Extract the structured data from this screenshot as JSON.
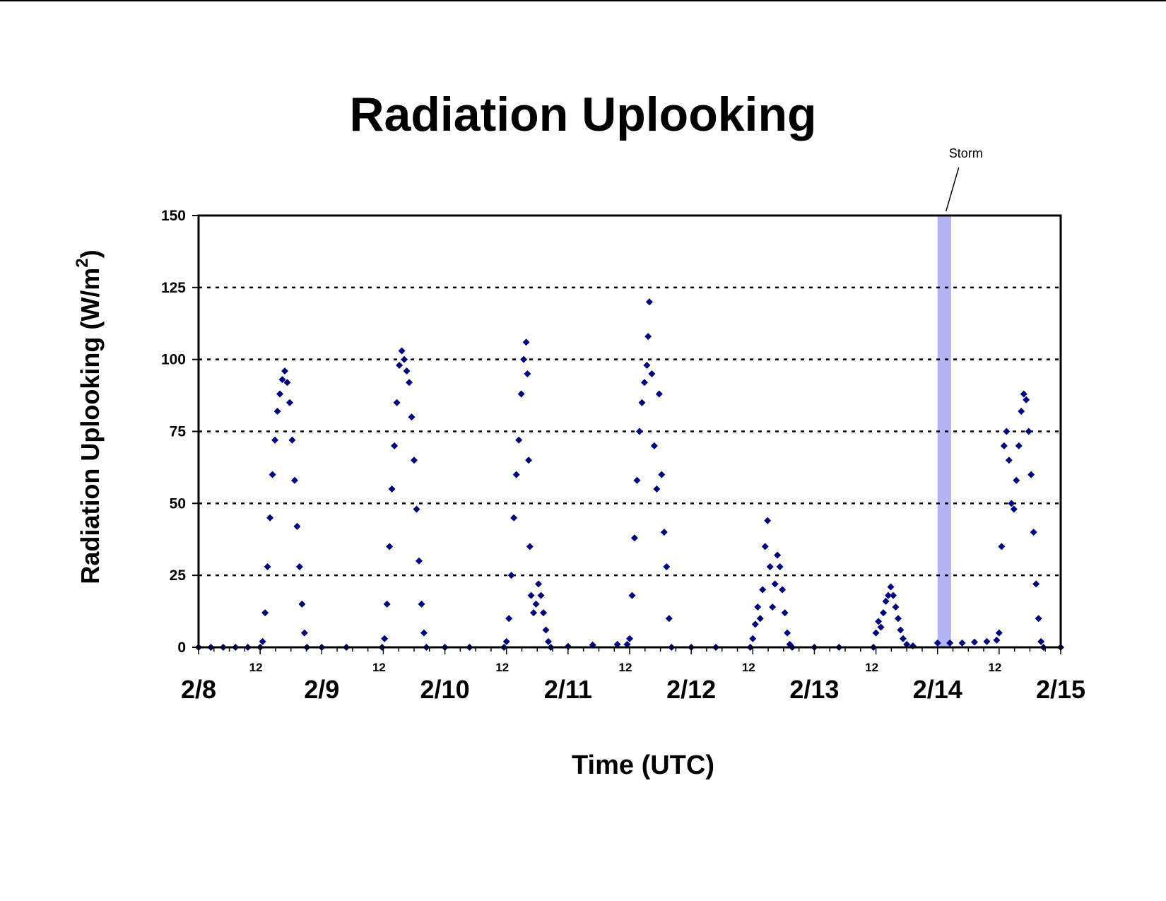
{
  "chart_data": {
    "type": "scatter",
    "title": "Radiation Uplooking",
    "xlabel": "Time (UTC)",
    "ylabel": "Radiation Uplooking (W/m",
    "ylabel_superscript": "2",
    "ylabel_close": ")",
    "x_units": "days since 2/8 00 UTC",
    "xlim": [
      0,
      7
    ],
    "ylim": [
      0,
      150
    ],
    "y_ticks": [
      0,
      25,
      50,
      75,
      100,
      125,
      150
    ],
    "y_tick_labels": [
      "0",
      "25",
      "50",
      "75",
      "100",
      "125",
      "150"
    ],
    "grid": "horizontal dotted at 25, 50, 75, 100, 125",
    "x_date_ticks": [
      {
        "x": 0,
        "label": "2/8"
      },
      {
        "x": 1,
        "label": "2/9"
      },
      {
        "x": 2,
        "label": "2/10"
      },
      {
        "x": 3,
        "label": "2/11"
      },
      {
        "x": 4,
        "label": "2/12"
      },
      {
        "x": 5,
        "label": "2/13"
      },
      {
        "x": 6,
        "label": "2/14"
      },
      {
        "x": 7,
        "label": "2/15"
      }
    ],
    "x_noon_ticks": [
      {
        "x": 0.5,
        "label": "12"
      },
      {
        "x": 1.5,
        "label": "12"
      },
      {
        "x": 2.5,
        "label": "12"
      },
      {
        "x": 3.5,
        "label": "12"
      },
      {
        "x": 4.5,
        "label": "12"
      },
      {
        "x": 5.5,
        "label": "12"
      },
      {
        "x": 6.5,
        "label": "12"
      }
    ],
    "annotation": {
      "label": "Storm",
      "x_start": 6.0,
      "x_end": 6.11,
      "color": "#B3B3F5"
    },
    "marker_color": "#000080",
    "series": [
      {
        "values": [
          [
            0.0,
            0
          ],
          [
            0.1,
            0
          ],
          [
            0.2,
            0
          ],
          [
            0.3,
            0
          ],
          [
            0.4,
            0
          ],
          [
            0.5,
            0
          ],
          [
            0.52,
            2
          ],
          [
            0.54,
            12
          ],
          [
            0.56,
            28
          ],
          [
            0.58,
            45
          ],
          [
            0.6,
            60
          ],
          [
            0.62,
            72
          ],
          [
            0.64,
            82
          ],
          [
            0.66,
            88
          ],
          [
            0.68,
            93
          ],
          [
            0.7,
            96
          ],
          [
            0.72,
            92
          ],
          [
            0.74,
            85
          ],
          [
            0.76,
            72
          ],
          [
            0.78,
            58
          ],
          [
            0.8,
            42
          ],
          [
            0.82,
            28
          ],
          [
            0.84,
            15
          ],
          [
            0.86,
            5
          ],
          [
            0.88,
            0
          ],
          [
            1.0,
            0
          ],
          [
            1.2,
            0
          ],
          [
            1.49,
            0
          ],
          [
            1.51,
            3
          ],
          [
            1.53,
            15
          ],
          [
            1.55,
            35
          ],
          [
            1.57,
            55
          ],
          [
            1.59,
            70
          ],
          [
            1.61,
            85
          ],
          [
            1.63,
            98
          ],
          [
            1.65,
            103
          ],
          [
            1.67,
            100
          ],
          [
            1.69,
            96
          ],
          [
            1.71,
            92
          ],
          [
            1.73,
            80
          ],
          [
            1.75,
            65
          ],
          [
            1.77,
            48
          ],
          [
            1.79,
            30
          ],
          [
            1.81,
            15
          ],
          [
            1.83,
            5
          ],
          [
            1.85,
            0
          ],
          [
            2.0,
            0
          ],
          [
            2.2,
            0
          ],
          [
            2.48,
            0
          ],
          [
            2.5,
            2
          ],
          [
            2.52,
            10
          ],
          [
            2.54,
            25
          ],
          [
            2.56,
            45
          ],
          [
            2.58,
            60
          ],
          [
            2.6,
            72
          ],
          [
            2.62,
            88
          ],
          [
            2.64,
            100
          ],
          [
            2.66,
            106
          ],
          [
            2.67,
            95
          ],
          [
            2.68,
            65
          ],
          [
            2.69,
            35
          ],
          [
            2.7,
            18
          ],
          [
            2.72,
            12
          ],
          [
            2.74,
            15
          ],
          [
            2.76,
            22
          ],
          [
            2.78,
            18
          ],
          [
            2.8,
            12
          ],
          [
            2.82,
            6
          ],
          [
            2.84,
            2
          ],
          [
            2.86,
            0
          ],
          [
            3.0,
            0.3
          ],
          [
            3.2,
            0.8
          ],
          [
            3.4,
            1
          ],
          [
            3.48,
            1
          ],
          [
            3.5,
            3
          ],
          [
            3.52,
            18
          ],
          [
            3.54,
            38
          ],
          [
            3.56,
            58
          ],
          [
            3.58,
            75
          ],
          [
            3.6,
            85
          ],
          [
            3.62,
            92
          ],
          [
            3.64,
            98
          ],
          [
            3.65,
            108
          ],
          [
            3.66,
            120
          ],
          [
            3.68,
            95
          ],
          [
            3.7,
            70
          ],
          [
            3.72,
            55
          ],
          [
            3.74,
            88
          ],
          [
            3.76,
            60
          ],
          [
            3.78,
            40
          ],
          [
            3.8,
            28
          ],
          [
            3.82,
            10
          ],
          [
            3.84,
            0
          ],
          [
            4.0,
            0
          ],
          [
            4.2,
            0
          ],
          [
            4.48,
            0
          ],
          [
            4.5,
            3
          ],
          [
            4.52,
            8
          ],
          [
            4.54,
            14
          ],
          [
            4.56,
            10
          ],
          [
            4.58,
            20
          ],
          [
            4.6,
            35
          ],
          [
            4.62,
            44
          ],
          [
            4.64,
            28
          ],
          [
            4.66,
            14
          ],
          [
            4.68,
            22
          ],
          [
            4.7,
            32
          ],
          [
            4.72,
            28
          ],
          [
            4.74,
            20
          ],
          [
            4.76,
            12
          ],
          [
            4.78,
            5
          ],
          [
            4.8,
            1
          ],
          [
            4.82,
            0
          ],
          [
            5.0,
            0
          ],
          [
            5.2,
            0
          ],
          [
            5.48,
            0
          ],
          [
            5.5,
            5
          ],
          [
            5.52,
            9
          ],
          [
            5.54,
            7
          ],
          [
            5.56,
            12
          ],
          [
            5.58,
            16
          ],
          [
            5.6,
            18
          ],
          [
            5.62,
            21
          ],
          [
            5.64,
            18
          ],
          [
            5.66,
            14
          ],
          [
            5.68,
            10
          ],
          [
            5.7,
            6
          ],
          [
            5.72,
            3
          ],
          [
            5.75,
            1
          ],
          [
            5.8,
            0.5
          ],
          [
            6.0,
            1.5
          ],
          [
            6.1,
            1.5
          ],
          [
            6.2,
            1.5
          ],
          [
            6.3,
            1.8
          ],
          [
            6.4,
            2
          ],
          [
            6.48,
            2.5
          ],
          [
            6.5,
            5
          ],
          [
            6.52,
            35
          ],
          [
            6.54,
            70
          ],
          [
            6.56,
            75
          ],
          [
            6.58,
            65
          ],
          [
            6.6,
            50
          ],
          [
            6.62,
            48
          ],
          [
            6.64,
            58
          ],
          [
            6.66,
            70
          ],
          [
            6.68,
            82
          ],
          [
            6.7,
            88
          ],
          [
            6.72,
            86
          ],
          [
            6.74,
            75
          ],
          [
            6.76,
            60
          ],
          [
            6.78,
            40
          ],
          [
            6.8,
            22
          ],
          [
            6.82,
            10
          ],
          [
            6.84,
            2
          ],
          [
            6.86,
            0
          ],
          [
            7.0,
            0
          ]
        ]
      }
    ]
  }
}
